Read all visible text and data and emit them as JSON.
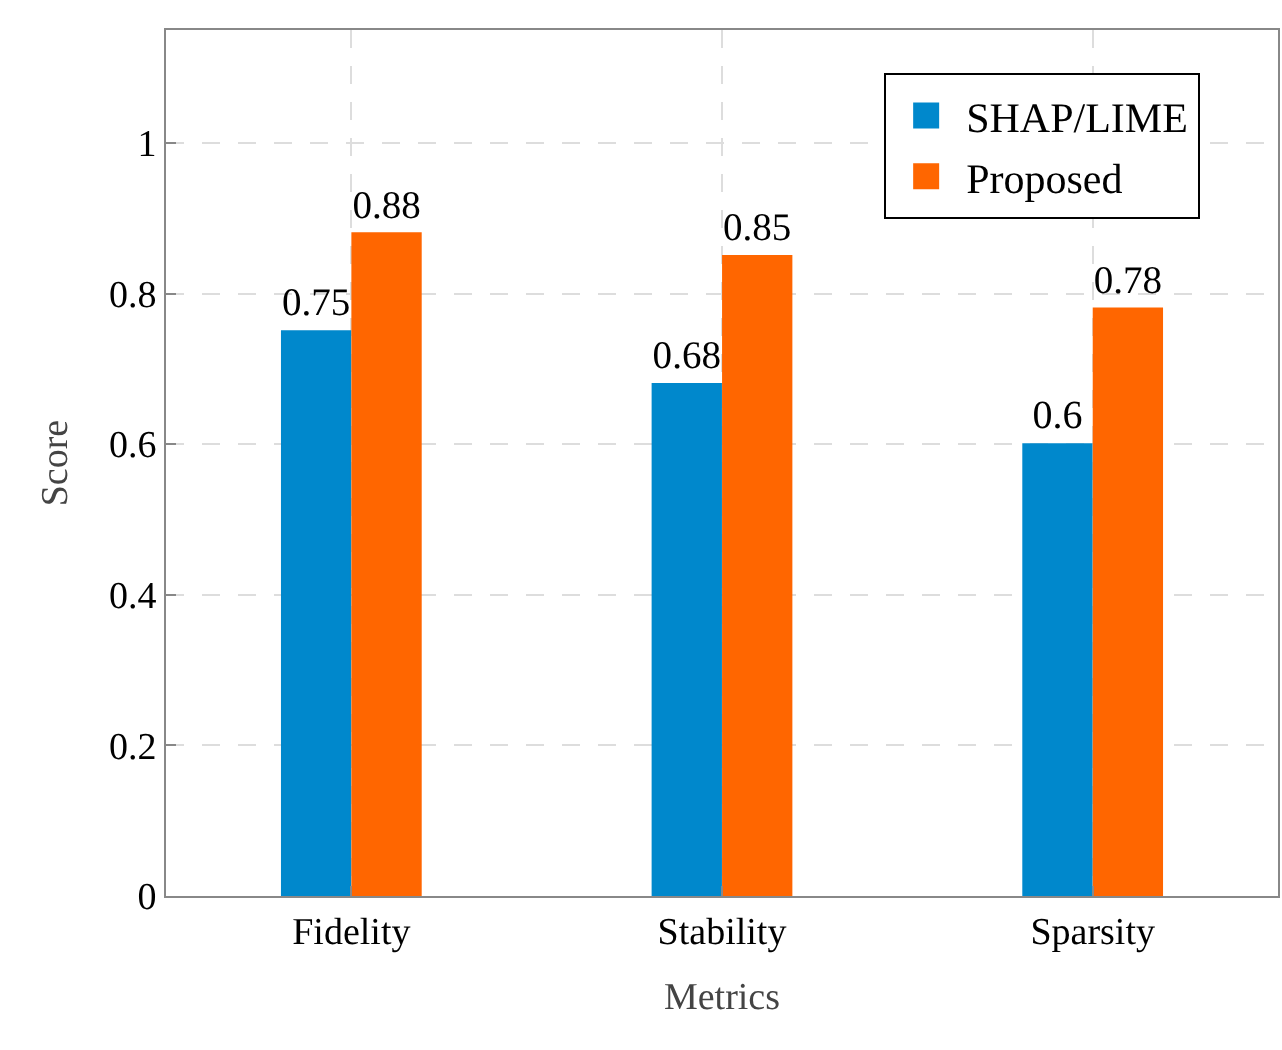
{
  "chart_data": {
    "type": "bar",
    "xlabel": "Metrics",
    "ylabel": "Score",
    "categories": [
      "Fidelity",
      "Stability",
      "Sparsity"
    ],
    "series": [
      {
        "name": "SHAP/LIME",
        "color": "#0088cc",
        "values": [
          0.75,
          0.68,
          0.6
        ]
      },
      {
        "name": "Proposed",
        "color": "#ff6600",
        "values": [
          0.88,
          0.85,
          0.78
        ]
      }
    ],
    "ylim": [
      0,
      1.15
    ],
    "yticks": [
      0,
      0.2,
      0.4,
      0.6,
      0.8,
      1
    ],
    "grid": true,
    "legend": "top right",
    "data_labels": true
  }
}
